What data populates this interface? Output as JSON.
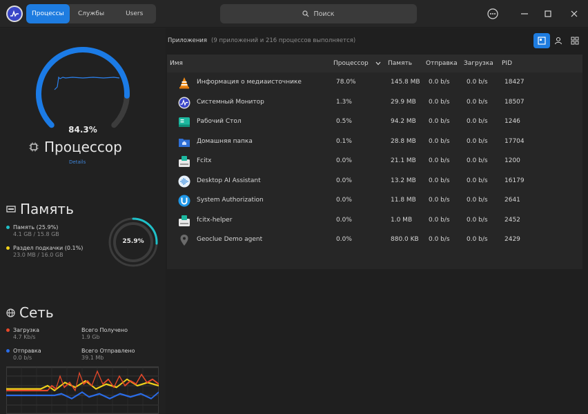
{
  "titlebar": {
    "tabs": [
      {
        "label": "Процессы",
        "active": true
      },
      {
        "label": "Службы",
        "active": false
      },
      {
        "label": "Users",
        "active": false
      }
    ],
    "search_placeholder": "Поиск"
  },
  "cpu": {
    "percent": "84.3%",
    "percent_value": 0.843,
    "title": "Процессор",
    "details_link": "Details"
  },
  "memory": {
    "title": "Память",
    "ram_label": "Память (25.9%)",
    "ram_value": "4.1 GB / 15.8 GB",
    "swap_label": "Раздел подкачки (0.1%)",
    "swap_value": "23.0 MB / 16.0 GB",
    "ring_label": "25.9%",
    "ring_value": 0.259,
    "ram_color": "#1fc0c8",
    "swap_color": "#f2d21a"
  },
  "network": {
    "title": "Сеть",
    "download_label": "Загрузка",
    "download_value": "4.7 Kb/s",
    "received_label": "Всего Получено",
    "received_value": "1.9 Gb",
    "upload_label": "Отправка",
    "upload_value": "0.0 b/s",
    "sent_label": "Всего Отправлено",
    "sent_value": "39.1 Mb",
    "download_color": "#e8482a",
    "upload_color": "#2a6ce8"
  },
  "apps": {
    "title": "Приложения",
    "subtitle": "(9 приложений и 216 процессов выполняется)"
  },
  "table": {
    "columns": {
      "name": "Имя",
      "cpu": "Процессор",
      "memory": "Память",
      "send": "Отправка",
      "download": "Загрузка",
      "pid": "PID"
    },
    "rows": [
      {
        "icon": "vlc-cone-icon",
        "name": "Информация о медиаисточнике",
        "cpu": "78.0%",
        "memory": "145.8 MB",
        "send": "0.0 b/s",
        "download": "0.0 b/s",
        "pid": "18427"
      },
      {
        "icon": "system-monitor-icon",
        "name": "Системный Монитор",
        "cpu": "1.3%",
        "memory": "29.9 MB",
        "send": "0.0 b/s",
        "download": "0.0 b/s",
        "pid": "18507"
      },
      {
        "icon": "desktop-icon",
        "name": "Рабочий Стол",
        "cpu": "0.5%",
        "memory": "94.2 MB",
        "send": "0.0 b/s",
        "download": "0.0 b/s",
        "pid": "1246"
      },
      {
        "icon": "home-folder-icon",
        "name": "Домашняя папка",
        "cpu": "0.1%",
        "memory": "28.8 MB",
        "send": "0.0 b/s",
        "download": "0.0 b/s",
        "pid": "17704"
      },
      {
        "icon": "fcitx-keyboard-icon",
        "name": "Fcitx",
        "cpu": "0.0%",
        "memory": "21.1 MB",
        "send": "0.0 b/s",
        "download": "0.0 b/s",
        "pid": "1200"
      },
      {
        "icon": "ai-assistant-icon",
        "name": "Desktop AI Assistant",
        "cpu": "0.0%",
        "memory": "13.2 MB",
        "send": "0.0 b/s",
        "download": "0.0 b/s",
        "pid": "16179"
      },
      {
        "icon": "authorization-icon",
        "name": "System Authorization",
        "cpu": "0.0%",
        "memory": "11.8 MB",
        "send": "0.0 b/s",
        "download": "0.0 b/s",
        "pid": "2641"
      },
      {
        "icon": "fcitx-keyboard-icon",
        "name": "fcitx-helper",
        "cpu": "0.0%",
        "memory": "1.0 MB",
        "send": "0.0 b/s",
        "download": "0.0 b/s",
        "pid": "2452"
      },
      {
        "icon": "location-pin-icon",
        "name": "Geoclue Demo agent",
        "cpu": "0.0%",
        "memory": "880.0 KB",
        "send": "0.0 b/s",
        "download": "0.0 b/s",
        "pid": "2429"
      }
    ]
  }
}
